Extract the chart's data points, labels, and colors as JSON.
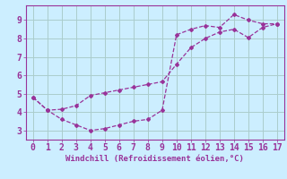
{
  "line1_x": [
    0,
    1,
    2,
    3,
    4,
    5,
    6,
    7,
    8,
    9,
    10,
    11,
    12,
    13,
    14,
    15,
    16,
    17
  ],
  "line1_y": [
    4.8,
    4.1,
    3.6,
    3.3,
    3.0,
    3.1,
    3.3,
    3.5,
    3.6,
    4.1,
    8.2,
    8.5,
    8.7,
    8.6,
    9.3,
    9.0,
    8.8,
    8.8
  ],
  "line2_x": [
    0,
    1,
    2,
    3,
    4,
    5,
    6,
    7,
    8,
    9,
    10,
    11,
    12,
    13,
    14,
    15,
    16,
    17
  ],
  "line2_y": [
    4.8,
    4.1,
    4.15,
    4.35,
    4.9,
    5.05,
    5.2,
    5.35,
    5.5,
    5.65,
    6.6,
    7.5,
    8.0,
    8.35,
    8.5,
    8.05,
    8.6,
    8.8
  ],
  "line_color": "#993399",
  "bg_color": "#cceeff",
  "grid_color": "#aacccc",
  "xlabel": "Windchill (Refroidissement éolien,°C)",
  "xlabel_color": "#993399",
  "xlabel_fontsize": 6.5,
  "tick_label_color": "#993399",
  "tick_fontsize": 7,
  "xlim": [
    -0.5,
    17.5
  ],
  "ylim": [
    2.5,
    9.8
  ],
  "yticks": [
    3,
    4,
    5,
    6,
    7,
    8,
    9
  ],
  "xticks": [
    0,
    1,
    2,
    3,
    4,
    5,
    6,
    7,
    8,
    9,
    10,
    11,
    12,
    13,
    14,
    15,
    16,
    17
  ],
  "marker": "D",
  "markersize": 2.0,
  "linewidth": 0.9
}
